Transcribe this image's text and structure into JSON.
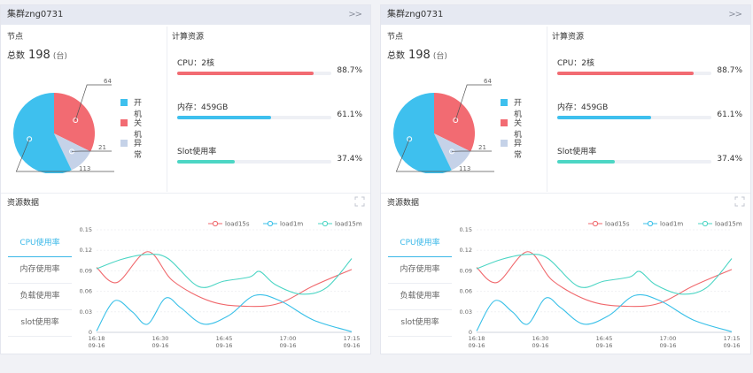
{
  "cards": [
    {
      "title": "集群zng0731",
      "collapse_glyph": ">>",
      "nodes": {
        "title": "节点",
        "total_label": "总数",
        "total_value": "198",
        "total_unit": "(台)",
        "pie": {
          "slices": [
            {
              "name": "开机",
              "value": 113,
              "color": "#3ec0ee"
            },
            {
              "name": "关机",
              "value": 64,
              "color": "#f26b72"
            },
            {
              "name": "异常",
              "value": 21,
              "color": "#c5d2e8"
            }
          ],
          "labels": [
            "64",
            "21",
            "113"
          ]
        }
      },
      "resources": {
        "title": "计算资源",
        "items": [
          {
            "label": "CPU：2核",
            "percent": 88.7,
            "percent_text": "88.7%",
            "color": "#f26b72"
          },
          {
            "label": "内存：459GB",
            "percent": 61.1,
            "percent_text": "61.1%",
            "color": "#3ec0ee"
          },
          {
            "label": "Slot使用率",
            "percent": 37.4,
            "percent_text": "37.4%",
            "color": "#4cd6c4"
          }
        ]
      },
      "resource_data": {
        "title": "资源数据",
        "tabs": [
          "CPU使用率",
          "内存使用率",
          "负载使用率",
          "slot使用率"
        ],
        "active_tab": 0
      }
    },
    {
      "title": "集群zng0731",
      "collapse_glyph": ">>",
      "nodes": {
        "title": "节点",
        "total_label": "总数",
        "total_value": "198",
        "total_unit": "(台)",
        "pie": {
          "slices": [
            {
              "name": "开机",
              "value": 113,
              "color": "#3ec0ee"
            },
            {
              "name": "关机",
              "value": 64,
              "color": "#f26b72"
            },
            {
              "name": "异常",
              "value": 21,
              "color": "#c5d2e8"
            }
          ],
          "labels": [
            "64",
            "21",
            "113"
          ]
        }
      },
      "resources": {
        "title": "计算资源",
        "items": [
          {
            "label": "CPU：2核",
            "percent": 88.7,
            "percent_text": "88.7%",
            "color": "#f26b72"
          },
          {
            "label": "内存：459GB",
            "percent": 61.1,
            "percent_text": "61.1%",
            "color": "#3ec0ee"
          },
          {
            "label": "Slot使用率",
            "percent": 37.4,
            "percent_text": "37.4%",
            "color": "#4cd6c4"
          }
        ]
      },
      "resource_data": {
        "title": "资源数据",
        "tabs": [
          "CPU使用率",
          "内存使用率",
          "负载使用率",
          "slot使用率"
        ],
        "active_tab": 0
      }
    }
  ],
  "chart_data": [
    {
      "type": "line",
      "x_ticks": [
        [
          "16:18",
          "09-16"
        ],
        [
          "16:30",
          "09-16"
        ],
        [
          "16:45",
          "09-16"
        ],
        [
          "17:00",
          "09-16"
        ],
        [
          "17:15",
          "09-16"
        ]
      ],
      "y_ticks": [
        "0.15",
        "0.12",
        "0.09",
        "0.06",
        "0.03",
        "0"
      ],
      "ylim": [
        0,
        0.15
      ],
      "xlim": [
        0,
        1
      ],
      "series": [
        {
          "name": "load15s",
          "color": "#f0686c",
          "x": [
            0,
            0.08,
            0.2,
            0.3,
            0.45,
            0.6,
            0.72,
            0.85,
            1
          ],
          "y": [
            0.095,
            0.073,
            0.118,
            0.075,
            0.045,
            0.038,
            0.043,
            0.068,
            0.092
          ]
        },
        {
          "name": "load1m",
          "color": "#39c0e8",
          "x": [
            0,
            0.07,
            0.14,
            0.2,
            0.27,
            0.33,
            0.42,
            0.52,
            0.62,
            0.72,
            0.85,
            1
          ],
          "y": [
            0.002,
            0.046,
            0.03,
            0.012,
            0.05,
            0.036,
            0.012,
            0.025,
            0.054,
            0.046,
            0.018,
            0.001
          ]
        },
        {
          "name": "load15m",
          "color": "#4bd5c4",
          "x": [
            0,
            0.1,
            0.2,
            0.28,
            0.4,
            0.5,
            0.6,
            0.64,
            0.7,
            0.8,
            0.9,
            1
          ],
          "y": [
            0.093,
            0.107,
            0.114,
            0.108,
            0.067,
            0.075,
            0.081,
            0.089,
            0.07,
            0.056,
            0.065,
            0.108
          ]
        }
      ]
    },
    {
      "type": "line",
      "x_ticks": [
        [
          "16:18",
          "09-16"
        ],
        [
          "16:30",
          "09-16"
        ],
        [
          "16:45",
          "09-16"
        ],
        [
          "17:00",
          "09-16"
        ],
        [
          "17:15",
          "09-16"
        ]
      ],
      "y_ticks": [
        "0.15",
        "0.12",
        "0.09",
        "0.06",
        "0.03",
        "0"
      ],
      "ylim": [
        0,
        0.15
      ],
      "xlim": [
        0,
        1
      ],
      "series": [
        {
          "name": "load15s",
          "color": "#f0686c",
          "x": [
            0,
            0.08,
            0.2,
            0.3,
            0.45,
            0.6,
            0.72,
            0.85,
            1
          ],
          "y": [
            0.095,
            0.073,
            0.118,
            0.075,
            0.045,
            0.038,
            0.043,
            0.068,
            0.092
          ]
        },
        {
          "name": "load1m",
          "color": "#39c0e8",
          "x": [
            0,
            0.07,
            0.14,
            0.2,
            0.27,
            0.33,
            0.42,
            0.52,
            0.62,
            0.72,
            0.85,
            1
          ],
          "y": [
            0.002,
            0.046,
            0.03,
            0.012,
            0.05,
            0.036,
            0.012,
            0.025,
            0.054,
            0.046,
            0.018,
            0.001
          ]
        },
        {
          "name": "load15m",
          "color": "#4bd5c4",
          "x": [
            0,
            0.1,
            0.2,
            0.28,
            0.4,
            0.5,
            0.6,
            0.64,
            0.7,
            0.8,
            0.9,
            1
          ],
          "y": [
            0.093,
            0.107,
            0.114,
            0.108,
            0.067,
            0.075,
            0.081,
            0.089,
            0.07,
            0.056,
            0.065,
            0.108
          ]
        }
      ]
    }
  ]
}
